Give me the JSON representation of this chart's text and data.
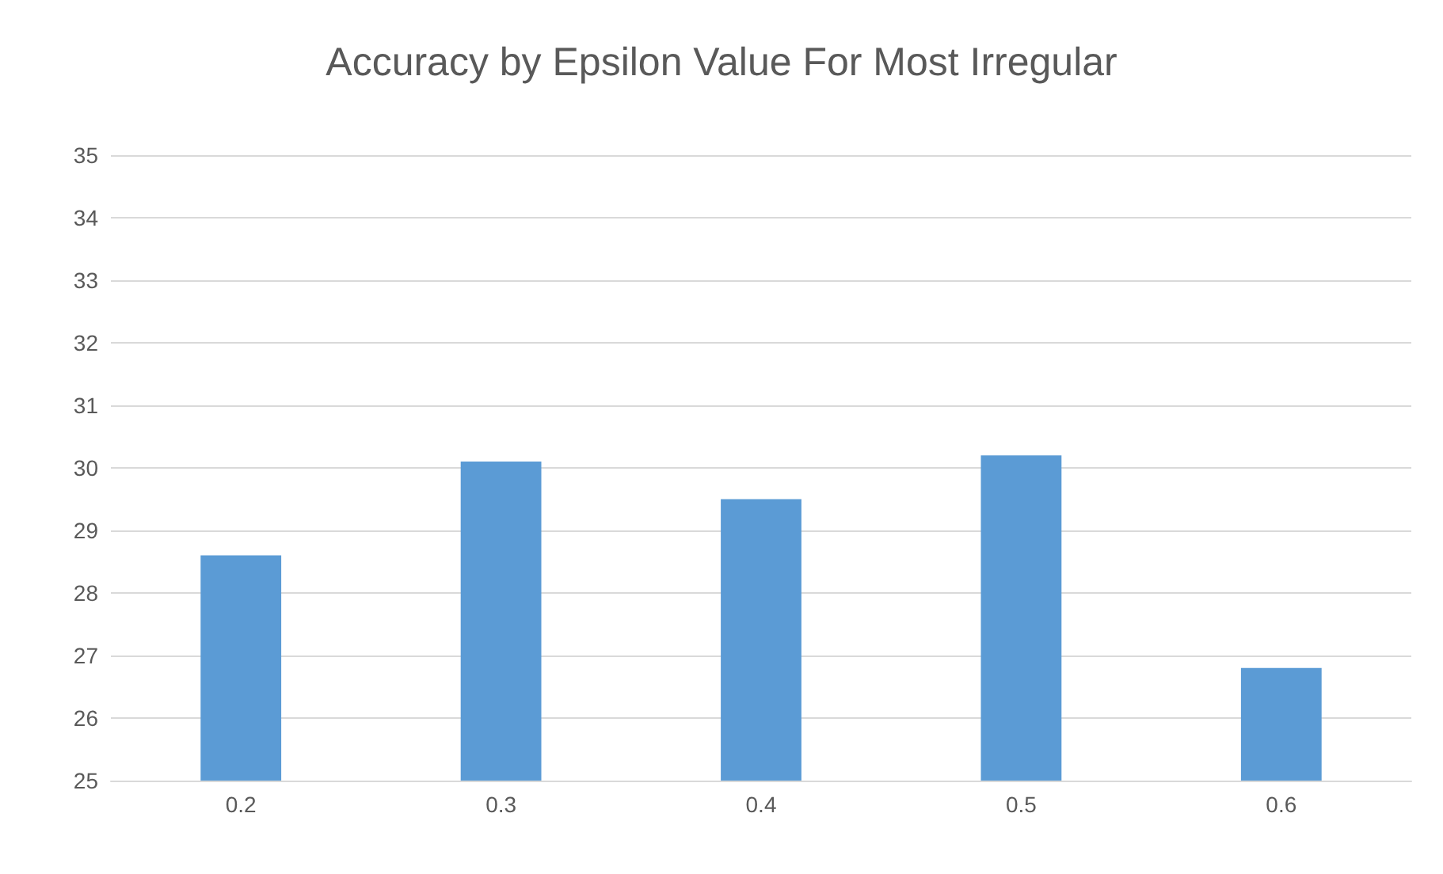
{
  "chart_data": {
    "type": "bar",
    "title": "Accuracy by Epsilon Value For Most Irregular",
    "categories": [
      "0.2",
      "0.3",
      "0.4",
      "0.5",
      "0.6"
    ],
    "values": [
      28.6,
      30.1,
      29.5,
      30.2,
      26.8
    ],
    "color": "#5b9bd5",
    "ylim": [
      25,
      35
    ],
    "yticks": [
      25,
      26,
      27,
      28,
      29,
      30,
      31,
      32,
      33,
      34,
      35
    ],
    "grid": "y"
  }
}
